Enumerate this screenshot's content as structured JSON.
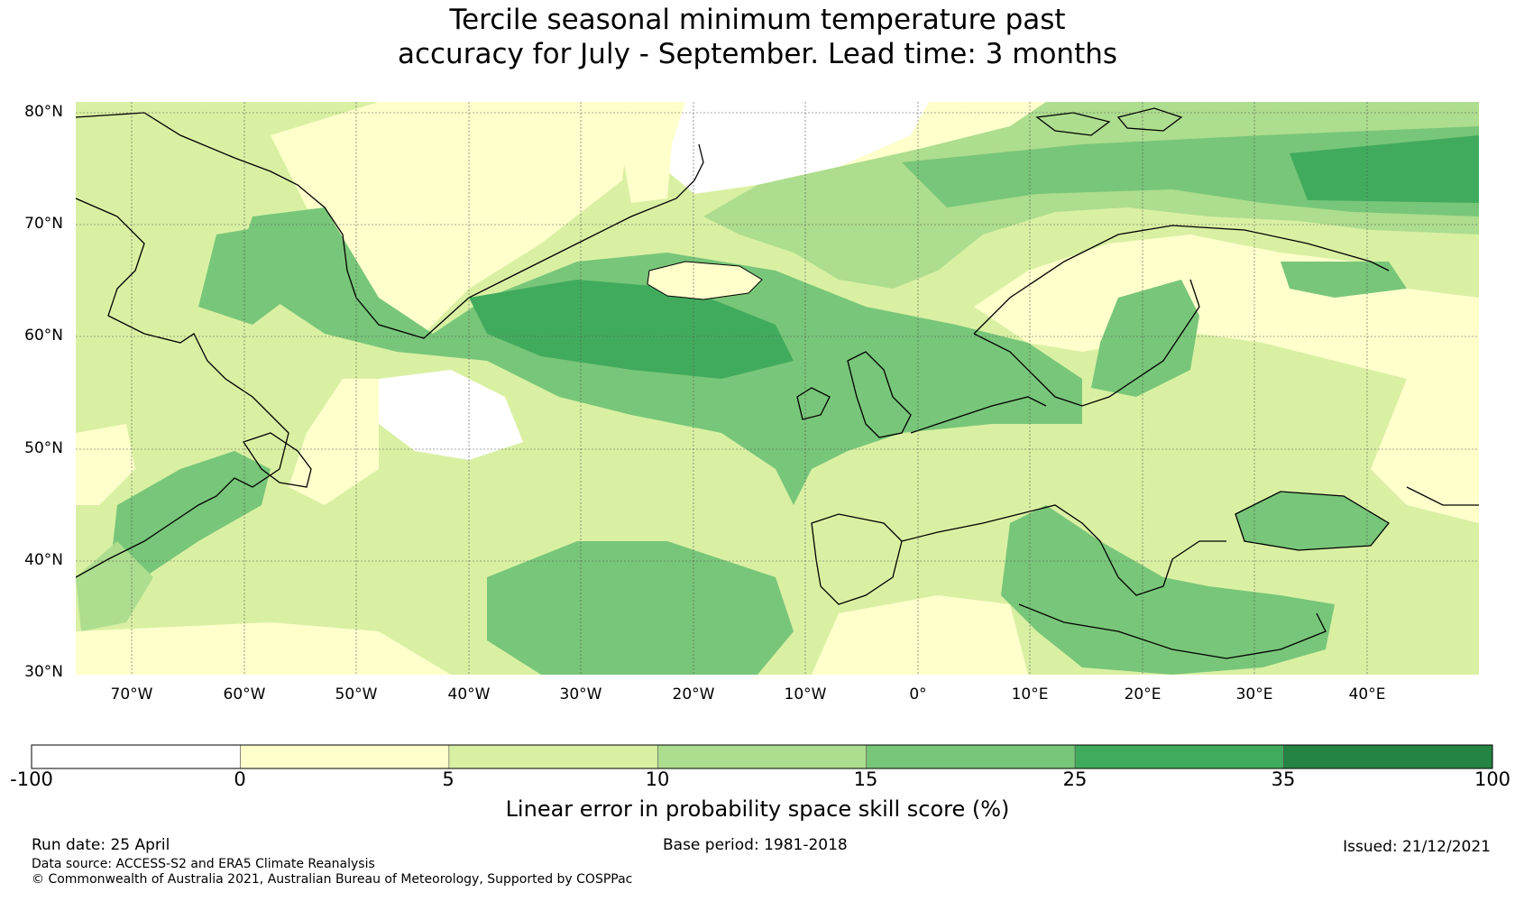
{
  "title": {
    "line1": "Tercile seasonal minimum temperature past",
    "line2": "accuracy for July - September. Lead time: 3 months"
  },
  "map": {
    "lat_labels": [
      "80°N",
      "70°N",
      "60°N",
      "50°N",
      "40°N",
      "30°N"
    ],
    "lon_labels": [
      "70°W",
      "60°W",
      "50°W",
      "40°W",
      "30°W",
      "20°W",
      "10°W",
      "0°",
      "10°E",
      "20°E",
      "30°E",
      "40°E"
    ],
    "lon_range": [
      -75,
      50
    ],
    "lat_range": [
      30,
      81
    ],
    "grid": true
  },
  "colorbar": {
    "ticks": [
      "-100",
      "0",
      "5",
      "10",
      "15",
      "25",
      "35",
      "100"
    ],
    "colors": [
      "#ffffff",
      "#ffffcc",
      "#d9f0a3",
      "#addd8e",
      "#78c679",
      "#41ab5d",
      "#238443"
    ],
    "label": "Linear error in probability space skill score (%)"
  },
  "footer": {
    "run_date": "Run date: 25 April",
    "base_period": "Base period: 1981-2018",
    "issued": "Issued: 21/12/2021",
    "data_source": "Data source: ACCESS-S2 and ERA5 Climate Reanalysis",
    "copyright": "© Commonwealth of Australia 2021, Australian Bureau of Meteorology, Supported by COSPPac"
  }
}
